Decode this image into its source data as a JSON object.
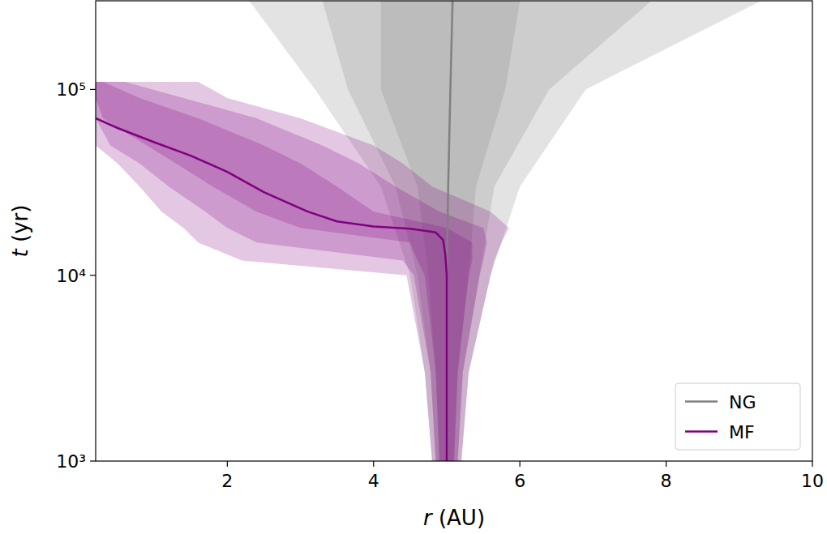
{
  "chart_data": {
    "type": "line",
    "x_label": "r (AU)",
    "y_label": "t (yr)",
    "log": "y",
    "legend": "lower right",
    "xlim": [
      0.2,
      10
    ],
    "xticks": [
      2,
      4,
      6,
      8,
      10
    ],
    "ylim": [
      1000,
      300000
    ],
    "yticks": [
      {
        "value": 1000,
        "label": "10³"
      },
      {
        "value": 10000,
        "label": "10⁴"
      },
      {
        "value": 100000,
        "label": "10⁵"
      }
    ],
    "series": [
      {
        "name": "NG",
        "color": "#808080",
        "x": [
          5.0,
          5.0,
          5.0,
          5.02,
          5.05,
          5.08
        ],
        "values": [
          1000,
          3000,
          10000,
          30000,
          100000,
          300000
        ],
        "bands": [
          {
            "values": [
              1000,
              3000,
              10000,
              30000,
              100000,
              300000
            ],
            "x_low": [
              4.8,
              4.7,
              4.5,
              4.1,
              3.2,
              2.3
            ],
            "x_high": [
              5.2,
              5.3,
              5.6,
              6.0,
              6.9,
              9.3
            ]
          },
          {
            "values": [
              1000,
              3000,
              10000,
              30000,
              100000,
              300000
            ],
            "x_low": [
              4.85,
              4.78,
              4.6,
              4.3,
              3.65,
              3.3
            ],
            "x_high": [
              5.15,
              5.22,
              5.45,
              5.65,
              6.4,
              7.8
            ]
          },
          {
            "values": [
              1000,
              3000,
              10000,
              30000,
              100000,
              300000
            ],
            "x_low": [
              4.9,
              4.85,
              4.75,
              4.6,
              4.1,
              4.1
            ],
            "x_high": [
              5.1,
              5.15,
              5.3,
              5.4,
              5.8,
              6.0
            ]
          }
        ]
      },
      {
        "name": "MF",
        "color": "#800080",
        "x": [
          5.0,
          5.0,
          5.0,
          4.98,
          4.95,
          4.85,
          4.5,
          4.0,
          3.5,
          3.1,
          2.5,
          2.0,
          1.5,
          1.0,
          0.5,
          0.2
        ],
        "values": [
          1000,
          5000,
          10000,
          13000,
          15500,
          17000,
          17800,
          18300,
          19500,
          22000,
          28000,
          36000,
          44000,
          52000,
          62000,
          70000
        ],
        "bands": [
          {
            "values": [
              1000,
              3000,
              10000,
              12000,
              15000,
              18000,
              22000,
              30000,
              40000,
              50000,
              70000,
              90000,
              110000
            ],
            "x_low": [
              4.8,
              4.7,
              4.45,
              2.2,
              1.6,
              1.4,
              1.1,
              0.8,
              0.5,
              0.2,
              0.2,
              0.2,
              0.2
            ],
            "x_high": [
              5.2,
              5.3,
              5.6,
              5.65,
              5.75,
              5.85,
              5.6,
              4.8,
              4.4,
              4.0,
              3.0,
              2.0,
              1.6
            ]
          },
          {
            "values": [
              1000,
              3000,
              10000,
              12000,
              15000,
              18000,
              22000,
              30000,
              40000,
              50000,
              70000,
              90000,
              110000
            ],
            "x_low": [
              4.85,
              4.78,
              4.55,
              4.4,
              2.4,
              2.0,
              1.7,
              1.2,
              0.8,
              0.4,
              0.2,
              0.2,
              0.2
            ],
            "x_high": [
              5.15,
              5.22,
              5.45,
              5.5,
              5.55,
              5.5,
              4.9,
              4.3,
              3.8,
              3.3,
              2.4,
              1.4,
              0.6
            ]
          },
          {
            "values": [
              1000,
              3000,
              10000,
              12000,
              15000,
              18000,
              22000,
              30000,
              40000,
              50000,
              70000,
              90000,
              110000
            ],
            "x_low": [
              4.9,
              4.85,
              4.7,
              4.6,
              4.5,
              3.0,
              2.4,
              1.8,
              1.3,
              0.9,
              0.3,
              0.2,
              0.2
            ],
            "x_high": [
              5.1,
              5.15,
              5.3,
              5.35,
              5.35,
              5.0,
              4.0,
              3.5,
              3.0,
              2.5,
              1.6,
              0.8,
              0.3
            ]
          }
        ]
      }
    ]
  }
}
